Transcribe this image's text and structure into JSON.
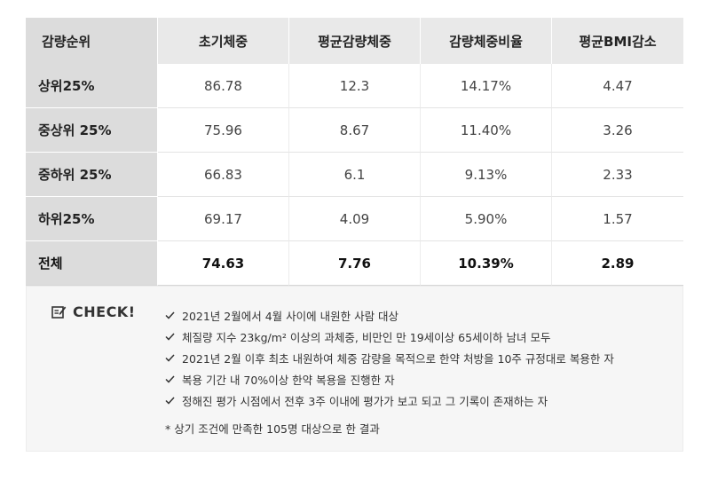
{
  "table": {
    "headers": [
      "감량순위",
      "초기체중",
      "평균감량체중",
      "감량체중비율",
      "평균BMI감소"
    ],
    "rows": [
      {
        "rank": "상위25%",
        "initial": "86.78",
        "avg_loss": "12.3",
        "ratio": "14.17%",
        "bmi": "4.47"
      },
      {
        "rank": "중상위 25%",
        "initial": "75.96",
        "avg_loss": "8.67",
        "ratio": "11.40%",
        "bmi": "3.26"
      },
      {
        "rank": "중하위 25%",
        "initial": "66.83",
        "avg_loss": "6.1",
        "ratio": "9.13%",
        "bmi": "2.33"
      },
      {
        "rank": "하위25%",
        "initial": "69.17",
        "avg_loss": "4.09",
        "ratio": "5.90%",
        "bmi": "1.57"
      },
      {
        "rank": "전체",
        "initial": "74.63",
        "avg_loss": "7.76",
        "ratio": "10.39%",
        "bmi": "2.89"
      }
    ]
  },
  "check": {
    "title": "CHECK!",
    "title_icon": "edit-note-icon",
    "item_icon": "checkmark-icon",
    "items": [
      "2021년 2월에서 4월 사이에 내원한 사람 대상",
      "체질량 지수 23kg/m² 이상의 과체중, 비만인 만 19세이상 65세이하 남녀 모두",
      "2021년 2월 이후 최초 내원하여 체중 감량을 목적으로 한약 처방을 10주 규정대로 복용한 자",
      "복용 기간 내 70%이상 한약 복용을 진행한 자",
      "정해진 평가 시점에서 전후 3주 이내에 평가가 보고 되고 그 기록이 존재하는 자"
    ],
    "note": "* 상기 조건에 만족한 105명 대상으로 한 결과"
  },
  "colors": {
    "header_bg": "#e9e9e9",
    "rowhead_bg": "#dcdcdc",
    "check_bg": "#f6f6f6"
  }
}
